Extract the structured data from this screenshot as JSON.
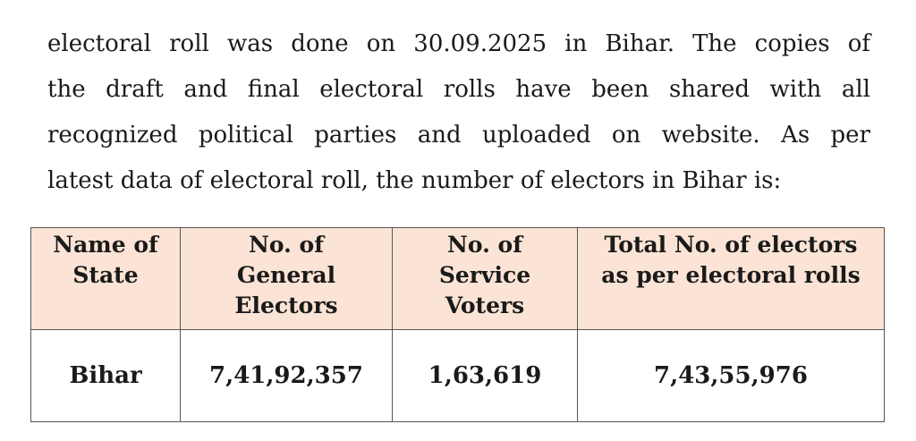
{
  "paragraph": {
    "lines": [
      "electoral roll was done on 30.09.2025 in Bihar. The copies of",
      "the draft and final electoral rolls have been shared with all",
      "recognized political parties and uploaded on website. As per",
      "latest data of electoral roll, the number of electors in Bihar is:"
    ]
  },
  "table": {
    "headers": [
      "Name of\nState",
      "No. of\nGeneral\nElectors",
      "No. of\nService\nVoters",
      "Total No. of electors\nas per electoral rolls"
    ],
    "rows": [
      [
        "Bihar",
        "7,41,92,357",
        "1,63,619",
        "7,43,55,976"
      ]
    ],
    "header_bg": "#fbe4d5"
  }
}
